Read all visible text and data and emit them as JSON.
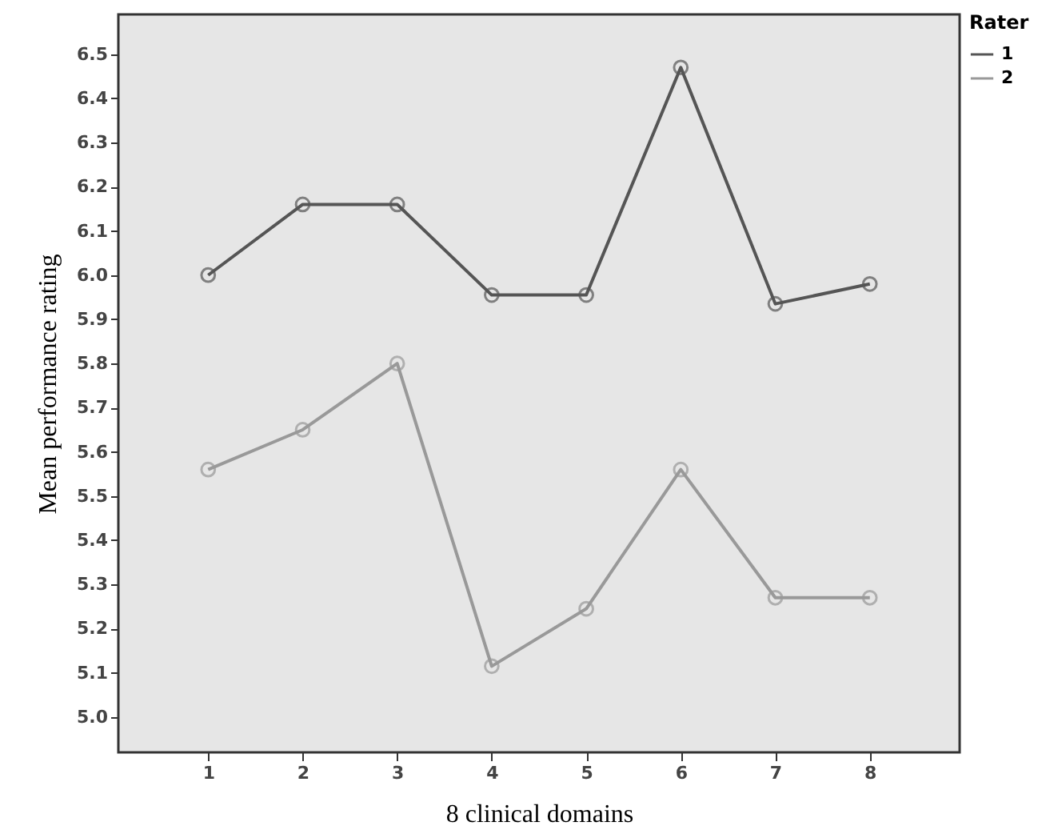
{
  "chart_data": {
    "type": "line",
    "xlabel": "8 clinical domains",
    "ylabel": "Mean performance rating",
    "legend_title": "Rater",
    "x": [
      1,
      2,
      3,
      4,
      5,
      6,
      7,
      8
    ],
    "series": [
      {
        "name": "1",
        "color": "#555555",
        "values": [
          6.0,
          6.16,
          6.16,
          5.955,
          5.955,
          6.47,
          5.935,
          5.98
        ]
      },
      {
        "name": "2",
        "color": "#999999",
        "values": [
          5.56,
          5.65,
          5.8,
          5.115,
          5.245,
          5.56,
          5.27,
          5.27
        ]
      }
    ],
    "xlim": [
      0.05,
      8.95
    ],
    "xticks": [
      1,
      2,
      3,
      4,
      5,
      6,
      7,
      8
    ],
    "ylim": [
      4.92,
      6.59
    ],
    "yticks": [
      {
        "value": 5,
        "label": "5.0"
      },
      5.1,
      5.2,
      5.3,
      5.4,
      5.5,
      5.6,
      5.7,
      5.8,
      5.9,
      {
        "value": 6,
        "label": "6.0"
      },
      6.1,
      6.2,
      6.3,
      6.4,
      6.5
    ],
    "grid": false,
    "legend": "top right",
    "marker": "circle",
    "line_style": "solid"
  }
}
